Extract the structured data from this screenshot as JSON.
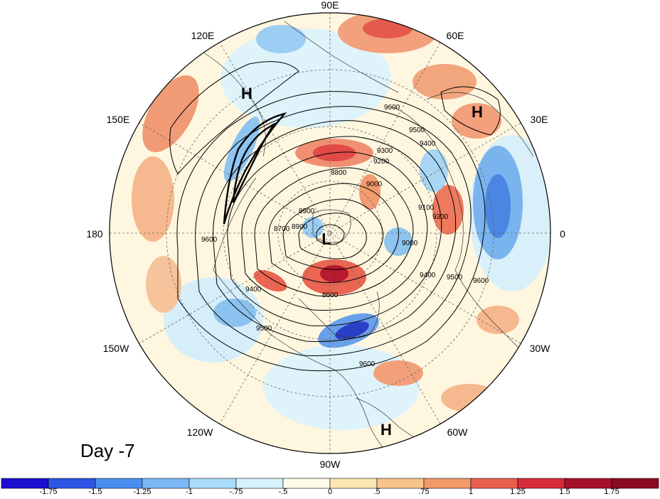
{
  "title": "Day -7",
  "longitude_labels": {
    "lon_90e": "90E",
    "lon_60e": "60E",
    "lon_30e": "30E",
    "lon_0": "0",
    "lon_30w": "30W",
    "lon_60w": "60W",
    "lon_90w": "90W",
    "lon_120w": "120W",
    "lon_150w": "150W",
    "lon_180": "180",
    "lon_150e": "150E",
    "lon_120e": "120E"
  },
  "pressure_centers": {
    "high_n_america_west_pacific": "H",
    "high_europe": "H",
    "high_atlantic_sw": "H",
    "low_pole": "L"
  },
  "contour_labels": [
    "9600",
    "9500",
    "9400",
    "9300",
    "9200",
    "9000",
    "8900",
    "8800",
    "8700",
    "8600",
    "8900",
    "9000",
    "9100",
    "9300",
    "9400",
    "9500",
    "9600",
    "9600",
    "9500",
    "9400",
    "9600"
  ],
  "colorbar": {
    "ticks": [
      "-1.75",
      "-1.5",
      "-1.25",
      "-1",
      "-.75",
      "-.5",
      "0",
      ".5",
      ".75",
      "1",
      "1.25",
      "1.5",
      "1.75"
    ],
    "colors": [
      "#1c0fd0",
      "#2c55e6",
      "#4a8ef2",
      "#7ab8f5",
      "#a8dcf8",
      "#d6f2fb",
      "#fffbe8",
      "#fbe7b4",
      "#f7c48a",
      "#f29a6a",
      "#ea5e4e",
      "#d82b3a",
      "#a8102a",
      "#8a0a20"
    ]
  },
  "field_colors": {
    "ocean_background": "#e6f6fb",
    "neutral_land": "#fff7e0",
    "positive_anomaly": "#f3a07c",
    "strong_positive": "#df3540",
    "negative_anomaly": "#6faeea",
    "strong_negative": "#1f3fcb"
  }
}
